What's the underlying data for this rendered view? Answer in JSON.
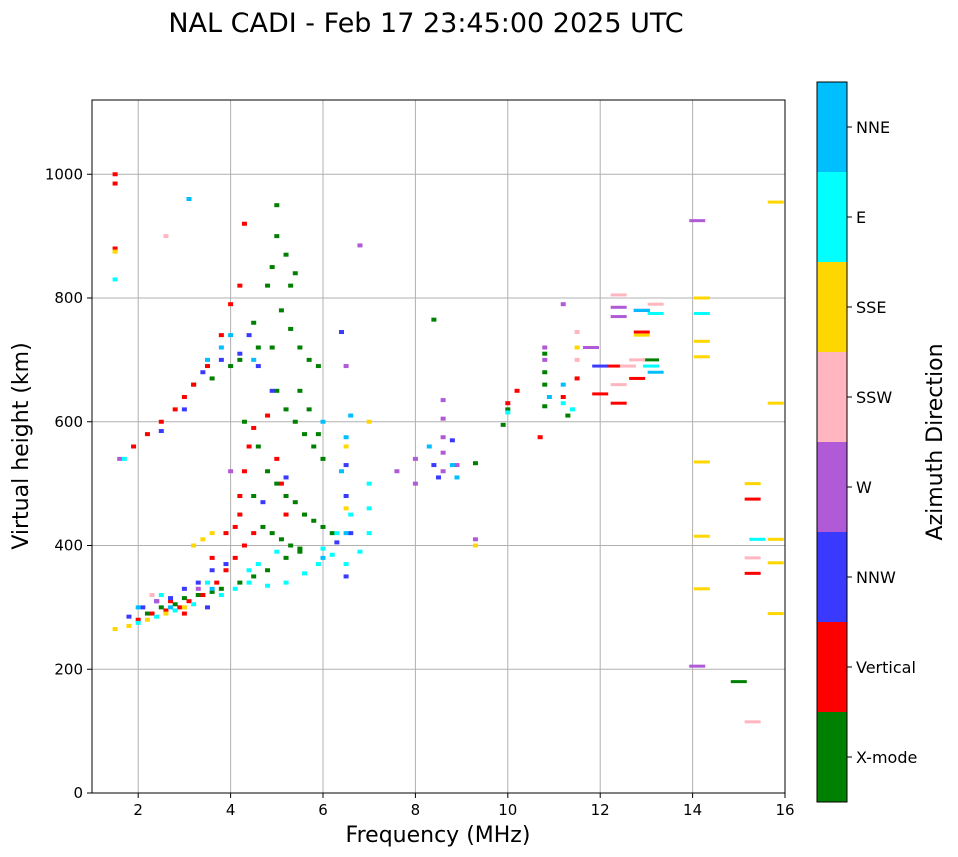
{
  "chart_data": {
    "type": "scatter",
    "title": "NAL CADI - Feb 17 23:45:00 2025 UTC",
    "xlabel": "Frequency (MHz)",
    "ylabel": "Virtual height (km)",
    "xlim": [
      1,
      16
    ],
    "ylim": [
      0,
      1120
    ],
    "xticks": [
      2,
      4,
      6,
      8,
      10,
      12,
      14,
      16
    ],
    "yticks": [
      0,
      200,
      400,
      600,
      800,
      1000
    ],
    "grid": true,
    "colorbar": {
      "title": "Azimuth Direction",
      "categories": [
        {
          "name": "X-mode",
          "color": "#008000"
        },
        {
          "name": "Vertical",
          "color": "#ff0000"
        },
        {
          "name": "NNW",
          "color": "#3a3aff"
        },
        {
          "name": "W",
          "color": "#b05ad8"
        },
        {
          "name": "SSW",
          "color": "#ffb6c1"
        },
        {
          "name": "SSE",
          "color": "#ffd700"
        },
        {
          "name": "E",
          "color": "#00ffff"
        },
        {
          "name": "NNE",
          "color": "#00bfff"
        }
      ]
    },
    "series": [
      {
        "name": "X-mode",
        "points": [
          [
            2.2,
            290
          ],
          [
            2.5,
            300
          ],
          [
            2.8,
            305
          ],
          [
            3.0,
            315
          ],
          [
            3.3,
            320
          ],
          [
            3.6,
            325
          ],
          [
            3.8,
            330
          ],
          [
            4.2,
            340
          ],
          [
            4.5,
            350
          ],
          [
            4.8,
            360
          ],
          [
            5.2,
            380
          ],
          [
            5.5,
            390
          ],
          [
            3.2,
            660
          ],
          [
            3.6,
            670
          ],
          [
            4.0,
            690
          ],
          [
            4.2,
            700
          ],
          [
            4.5,
            760
          ],
          [
            4.6,
            720
          ],
          [
            4.8,
            820
          ],
          [
            4.9,
            850
          ],
          [
            5.0,
            900
          ],
          [
            5.2,
            870
          ],
          [
            5.4,
            840
          ],
          [
            5.1,
            780
          ],
          [
            5.3,
            750
          ],
          [
            5.5,
            720
          ],
          [
            5.7,
            700
          ],
          [
            5.9,
            690
          ],
          [
            5.0,
            650
          ],
          [
            5.2,
            620
          ],
          [
            5.4,
            600
          ],
          [
            5.6,
            580
          ],
          [
            5.8,
            560
          ],
          [
            6.0,
            540
          ],
          [
            4.6,
            560
          ],
          [
            4.8,
            520
          ],
          [
            5.0,
            500
          ],
          [
            5.2,
            480
          ],
          [
            5.4,
            470
          ],
          [
            5.6,
            450
          ],
          [
            5.8,
            440
          ],
          [
            6.0,
            430
          ],
          [
            6.2,
            420
          ],
          [
            4.5,
            480
          ],
          [
            4.7,
            430
          ],
          [
            4.9,
            420
          ],
          [
            5.1,
            410
          ],
          [
            5.3,
            400
          ],
          [
            5.5,
            395
          ],
          [
            5.9,
            580
          ],
          [
            5.7,
            620
          ],
          [
            5.5,
            650
          ],
          [
            8.4,
            765
          ],
          [
            9.3,
            533
          ],
          [
            9.9,
            595
          ],
          [
            10.0,
            620
          ],
          [
            10.8,
            625
          ],
          [
            10.8,
            660
          ],
          [
            10.8,
            680
          ],
          [
            10.8,
            710
          ],
          [
            11.3,
            610
          ],
          [
            13.1,
            700
          ],
          [
            15.0,
            180
          ],
          [
            4.3,
            600
          ],
          [
            4.9,
            720
          ],
          [
            5.3,
            820
          ],
          [
            5.0,
            950
          ]
        ]
      },
      {
        "name": "Vertical",
        "points": [
          [
            1.5,
            1000
          ],
          [
            1.5,
            985
          ],
          [
            1.5,
            880
          ],
          [
            1.9,
            560
          ],
          [
            2.2,
            580
          ],
          [
            2.5,
            600
          ],
          [
            2.8,
            620
          ],
          [
            3.0,
            640
          ],
          [
            3.2,
            660
          ],
          [
            3.5,
            690
          ],
          [
            3.8,
            740
          ],
          [
            4.0,
            790
          ],
          [
            4.2,
            820
          ],
          [
            4.3,
            920
          ],
          [
            2.0,
            280
          ],
          [
            2.3,
            290
          ],
          [
            2.6,
            295
          ],
          [
            2.9,
            300
          ],
          [
            3.1,
            310
          ],
          [
            3.4,
            320
          ],
          [
            3.7,
            340
          ],
          [
            3.9,
            360
          ],
          [
            4.1,
            380
          ],
          [
            4.3,
            400
          ],
          [
            4.5,
            420
          ],
          [
            4.2,
            450
          ],
          [
            4.2,
            480
          ],
          [
            4.3,
            520
          ],
          [
            4.4,
            560
          ],
          [
            4.5,
            590
          ],
          [
            4.8,
            610
          ],
          [
            5.0,
            540
          ],
          [
            5.1,
            500
          ],
          [
            5.2,
            450
          ],
          [
            3.9,
            420
          ],
          [
            4.1,
            430
          ],
          [
            10.0,
            630
          ],
          [
            10.2,
            650
          ],
          [
            10.7,
            575
          ],
          [
            11.2,
            640
          ],
          [
            11.5,
            670
          ],
          [
            12.0,
            645
          ],
          [
            12.3,
            690
          ],
          [
            12.4,
            630
          ],
          [
            12.8,
            670
          ],
          [
            12.9,
            745
          ],
          [
            15.3,
            355
          ],
          [
            15.3,
            475
          ],
          [
            2.7,
            310
          ],
          [
            3.0,
            290
          ],
          [
            3.6,
            380
          ]
        ]
      },
      {
        "name": "NNW",
        "points": [
          [
            1.8,
            285
          ],
          [
            2.1,
            300
          ],
          [
            2.4,
            310
          ],
          [
            2.7,
            315
          ],
          [
            3.0,
            330
          ],
          [
            3.3,
            340
          ],
          [
            3.6,
            360
          ],
          [
            3.9,
            370
          ],
          [
            2.5,
            585
          ],
          [
            3.0,
            620
          ],
          [
            3.4,
            680
          ],
          [
            3.8,
            700
          ],
          [
            4.2,
            710
          ],
          [
            4.4,
            740
          ],
          [
            4.6,
            690
          ],
          [
            4.9,
            650
          ],
          [
            5.2,
            510
          ],
          [
            6.4,
            745
          ],
          [
            6.5,
            480
          ],
          [
            6.3,
            405
          ],
          [
            6.6,
            420
          ],
          [
            8.4,
            530
          ],
          [
            8.5,
            510
          ],
          [
            8.8,
            570
          ],
          [
            12.0,
            690
          ],
          [
            12.9,
            780
          ],
          [
            6.5,
            530
          ],
          [
            6.5,
            350
          ],
          [
            4.7,
            470
          ],
          [
            3.5,
            300
          ]
        ]
      },
      {
        "name": "W",
        "points": [
          [
            1.6,
            540
          ],
          [
            4.0,
            520
          ],
          [
            6.5,
            690
          ],
          [
            6.8,
            885
          ],
          [
            7.6,
            520
          ],
          [
            8.0,
            540
          ],
          [
            8.0,
            500
          ],
          [
            8.6,
            635
          ],
          [
            8.6,
            605
          ],
          [
            8.6,
            575
          ],
          [
            8.6,
            550
          ],
          [
            8.6,
            520
          ],
          [
            8.9,
            530
          ],
          [
            9.3,
            410
          ],
          [
            10.8,
            720
          ],
          [
            10.8,
            700
          ],
          [
            11.2,
            790
          ],
          [
            11.8,
            720
          ],
          [
            12.4,
            785
          ],
          [
            12.4,
            770
          ],
          [
            14.1,
            925
          ],
          [
            14.1,
            205
          ],
          [
            2.4,
            310
          ],
          [
            3.3,
            330
          ]
        ]
      },
      {
        "name": "SSW",
        "points": [
          [
            2.6,
            900
          ],
          [
            11.5,
            745
          ],
          [
            11.5,
            700
          ],
          [
            12.4,
            805
          ],
          [
            12.4,
            660
          ],
          [
            12.6,
            690
          ],
          [
            12.8,
            700
          ],
          [
            13.2,
            790
          ],
          [
            15.3,
            380
          ],
          [
            15.3,
            115
          ],
          [
            2.3,
            320
          ],
          [
            3.0,
            300
          ]
        ]
      },
      {
        "name": "SSE",
        "points": [
          [
            1.5,
            875
          ],
          [
            1.5,
            265
          ],
          [
            1.8,
            270
          ],
          [
            2.2,
            280
          ],
          [
            2.6,
            290
          ],
          [
            3.0,
            300
          ],
          [
            3.2,
            400
          ],
          [
            3.4,
            410
          ],
          [
            3.6,
            420
          ],
          [
            6.5,
            560
          ],
          [
            6.5,
            460
          ],
          [
            7.0,
            600
          ],
          [
            9.3,
            400
          ],
          [
            11.5,
            720
          ],
          [
            12.9,
            740
          ],
          [
            14.2,
            800
          ],
          [
            14.2,
            730
          ],
          [
            14.2,
            705
          ],
          [
            14.2,
            535
          ],
          [
            14.2,
            415
          ],
          [
            14.2,
            330
          ],
          [
            15.3,
            500
          ],
          [
            15.8,
            630
          ],
          [
            15.8,
            410
          ],
          [
            15.8,
            290
          ],
          [
            15.8,
            955
          ],
          [
            15.8,
            372
          ]
        ]
      },
      {
        "name": "E",
        "points": [
          [
            1.5,
            830
          ],
          [
            1.7,
            540
          ],
          [
            2.0,
            275
          ],
          [
            2.4,
            285
          ],
          [
            2.8,
            295
          ],
          [
            3.2,
            305
          ],
          [
            3.8,
            320
          ],
          [
            4.1,
            330
          ],
          [
            4.4,
            340
          ],
          [
            4.8,
            335
          ],
          [
            5.2,
            340
          ],
          [
            5.6,
            355
          ],
          [
            5.9,
            370
          ],
          [
            6.2,
            385
          ],
          [
            6.5,
            370
          ],
          [
            6.8,
            390
          ],
          [
            7.0,
            420
          ],
          [
            7.0,
            460
          ],
          [
            7.0,
            500
          ],
          [
            6.6,
            450
          ],
          [
            6.3,
            420
          ],
          [
            5.0,
            390
          ],
          [
            4.6,
            370
          ],
          [
            4.4,
            360
          ],
          [
            6.0,
            395
          ],
          [
            10.0,
            615
          ],
          [
            11.2,
            630
          ],
          [
            11.4,
            620
          ],
          [
            13.1,
            690
          ],
          [
            13.2,
            775
          ],
          [
            14.2,
            775
          ],
          [
            15.4,
            410
          ],
          [
            2.5,
            320
          ],
          [
            3.5,
            340
          ]
        ]
      },
      {
        "name": "NNE",
        "points": [
          [
            3.1,
            960
          ],
          [
            3.8,
            720
          ],
          [
            4.0,
            740
          ],
          [
            4.5,
            700
          ],
          [
            3.5,
            700
          ],
          [
            6.0,
            600
          ],
          [
            6.6,
            610
          ],
          [
            6.5,
            575
          ],
          [
            6.4,
            520
          ],
          [
            6.5,
            420
          ],
          [
            6.0,
            380
          ],
          [
            8.3,
            560
          ],
          [
            8.8,
            530
          ],
          [
            8.9,
            510
          ],
          [
            10.9,
            640
          ],
          [
            11.2,
            660
          ],
          [
            12.9,
            780
          ],
          [
            13.2,
            680
          ],
          [
            3.6,
            330
          ],
          [
            2.7,
            300
          ],
          [
            2.0,
            300
          ]
        ]
      }
    ]
  }
}
